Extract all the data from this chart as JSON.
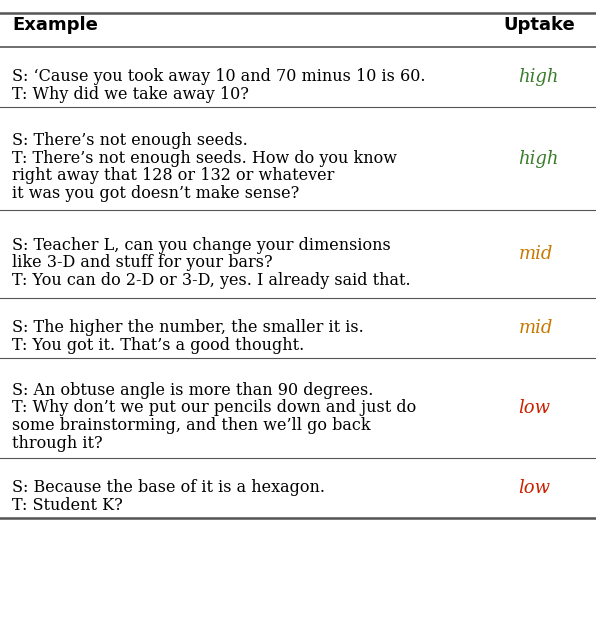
{
  "header": [
    "Example",
    "Uptake"
  ],
  "rows": [
    {
      "example": "S: ‘Cause you took away 10 and 70 minus 10 is 60.\nT: Why did we take away 10?",
      "uptake": "high",
      "uptake_color": "#3a7d2c"
    },
    {
      "example": "S: There’s not enough seeds.\nT: There’s not enough seeds. How do you know\nright away that 128 or 132 or whatever\nit was you got doesn’t make sense?",
      "uptake": "high",
      "uptake_color": "#3a7d2c"
    },
    {
      "example": "S: Teacher L, can you change your dimensions\nlike 3-D and stuff for your bars?\nT: You can do 2-D or 3-D, yes. I already said that.",
      "uptake": "mid",
      "uptake_color": "#c87800"
    },
    {
      "example": "S: The higher the number, the smaller it is.\nT: You got it. That’s a good thought.",
      "uptake": "mid",
      "uptake_color": "#c87800"
    },
    {
      "example": "S: An obtuse angle is more than 90 degrees.\nT: Why don’t we put our pencils down and just do\nsome brainstorming, and then we’ll go back\nthrough it?",
      "uptake": "low",
      "uptake_color": "#cc2200"
    },
    {
      "example": "S: Because the base of it is a hexagon.\nT: Student K?",
      "uptake": "low",
      "uptake_color": "#cc2200"
    }
  ],
  "bg_color": "#ffffff",
  "text_color": "#000000",
  "header_fontsize": 13,
  "body_fontsize": 11.5,
  "uptake_fontsize": 13,
  "line_color": "#555555"
}
